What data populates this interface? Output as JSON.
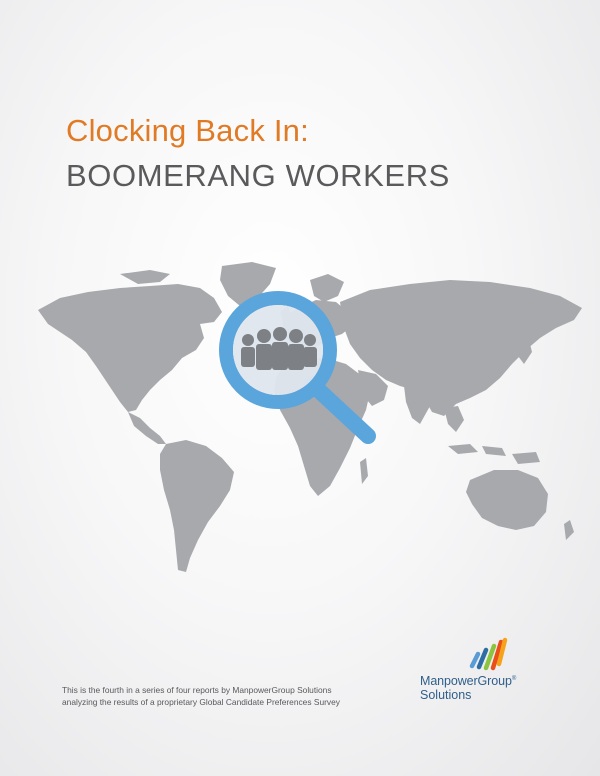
{
  "cover": {
    "title_line1": "Clocking Back In:",
    "title_line2": "BOOMERANG WORKERS",
    "footer_line1": "This is the fourth in a series of four reports by ManpowerGroup Solutions",
    "footer_line2": "analyzing the results of a proprietary Global Candidate Preferences Survey"
  },
  "logo": {
    "name": "ManpowerGroup",
    "registered_mark": "®",
    "sub": "Solutions"
  },
  "colors": {
    "title_accent": "#e07a25",
    "title_main": "#5a5a5c",
    "map_land": "#a7a9ac",
    "magnifier": "#5aa5dc",
    "logo_text": "#2f5f8a",
    "logo_stripes": [
      "#5b9bd5",
      "#2e6da4",
      "#8bc53f",
      "#e94e1b",
      "#f7a21b"
    ]
  },
  "icons": {
    "map": "world-map-icon",
    "magnifier": "magnifying-glass-icon",
    "people": "people-group-icon",
    "logo_mark": "manpowergroup-stripes-logo"
  }
}
